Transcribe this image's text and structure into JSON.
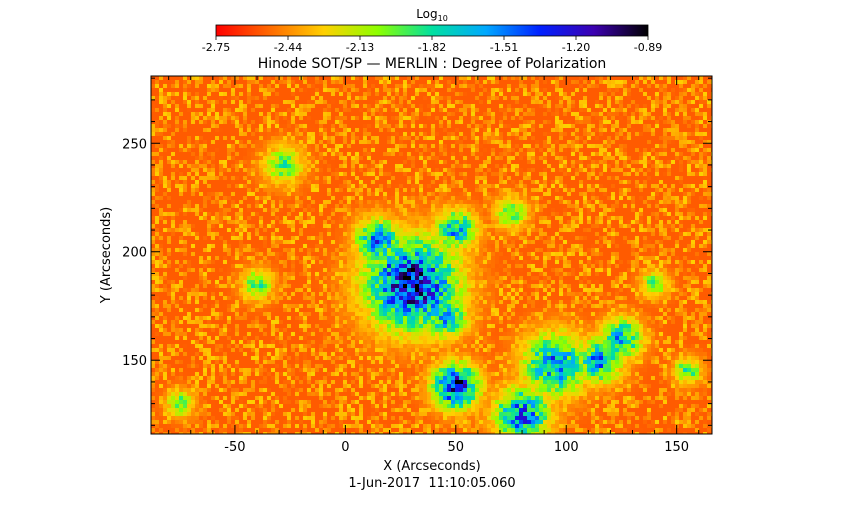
{
  "chart_data": {
    "type": "heatmap",
    "title": "Hinode SOT/SP — MERLIN : Degree of Polarization",
    "xlabel": "X (Arcseconds)",
    "ylabel": "Y (Arcseconds)",
    "date_label": "1-Jun-2017  11:10:05.060",
    "colorbar": {
      "title_base": "Log",
      "title_sub": "10",
      "min": -2.75,
      "max": -0.89,
      "ticks": [
        "-2.75",
        "-2.44",
        "-2.13",
        "-1.82",
        "-1.51",
        "-1.20",
        "-0.89"
      ],
      "colors": [
        "#ff0000",
        "#ff6a00",
        "#ffd000",
        "#8cff00",
        "#00e0a0",
        "#00a8ff",
        "#0020ff",
        "#3c00b0",
        "#000000"
      ]
    },
    "xlim": [
      -88,
      166
    ],
    "ylim": [
      116,
      281
    ],
    "xticks": [
      -50,
      0,
      50,
      100,
      150
    ],
    "yticks": [
      150,
      200,
      250
    ],
    "background_level": -2.55,
    "patches": [
      {
        "x": 30,
        "y": 185,
        "r": 20,
        "peak": -1.05
      },
      {
        "x": 15,
        "y": 205,
        "r": 10,
        "peak": -1.45
      },
      {
        "x": 50,
        "y": 210,
        "r": 9,
        "peak": -1.55
      },
      {
        "x": 45,
        "y": 170,
        "r": 10,
        "peak": -1.6
      },
      {
        "x": 50,
        "y": 138,
        "r": 10,
        "peak": -1.1
      },
      {
        "x": 80,
        "y": 125,
        "r": 12,
        "peak": -1.35
      },
      {
        "x": 95,
        "y": 148,
        "r": 14,
        "peak": -1.45
      },
      {
        "x": 115,
        "y": 150,
        "r": 10,
        "peak": -1.5
      },
      {
        "x": 125,
        "y": 160,
        "r": 9,
        "peak": -1.55
      },
      {
        "x": 75,
        "y": 218,
        "r": 7,
        "peak": -1.8
      },
      {
        "x": -28,
        "y": 240,
        "r": 9,
        "peak": -1.9
      },
      {
        "x": -40,
        "y": 185,
        "r": 7,
        "peak": -1.85
      },
      {
        "x": 140,
        "y": 185,
        "r": 6,
        "peak": -1.85
      },
      {
        "x": 155,
        "y": 145,
        "r": 6,
        "peak": -1.8
      },
      {
        "x": -75,
        "y": 130,
        "r": 6,
        "peak": -1.9
      }
    ]
  }
}
